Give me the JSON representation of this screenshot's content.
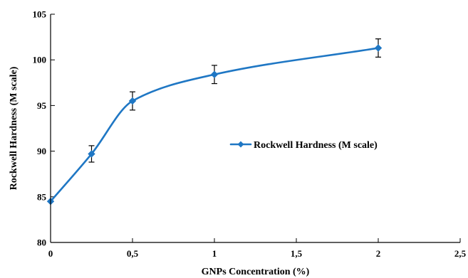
{
  "chart_data": {
    "type": "line",
    "title": "",
    "xlabel": "GNPs Concentration (%)",
    "ylabel": "Rockwell Hardness (M scale)",
    "xlim": [
      0,
      2.5
    ],
    "ylim": [
      80,
      105
    ],
    "x_ticks": [
      0,
      0.5,
      1,
      1.5,
      2,
      2.5
    ],
    "x_tick_labels": [
      "0",
      "0,5",
      "1",
      "1,5",
      "2",
      "2,5"
    ],
    "y_ticks": [
      80,
      85,
      90,
      95,
      100,
      105
    ],
    "y_tick_labels": [
      "80",
      "85",
      "90",
      "95",
      "100",
      "105"
    ],
    "grid": false,
    "legend_position": "center-right",
    "smooth": true,
    "series": [
      {
        "name": "Rockwell Hardness (M scale)",
        "color": "#1f77c4",
        "marker": "diamond",
        "x": [
          0,
          0.25,
          0.5,
          1,
          2
        ],
        "y": [
          84.5,
          89.7,
          95.5,
          98.4,
          101.3
        ],
        "error": [
          0,
          0.9,
          1.0,
          1.0,
          1.0
        ]
      }
    ]
  }
}
